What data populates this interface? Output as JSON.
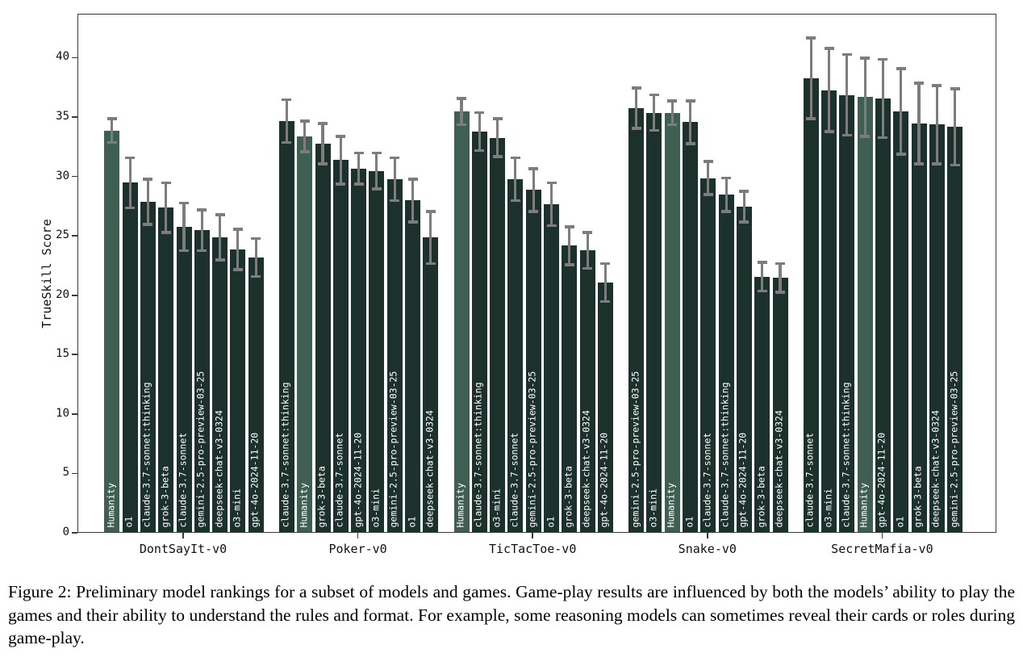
{
  "figure": {
    "caption": "Figure 2: Preliminary model rankings for a subset of models and games. Game-play results are influenced by both the models’ ability to play the games and their ability to understand the rules and format. For example, some reasoning models can sometimes reveal their cards or roles during game-play."
  },
  "chart_data": {
    "type": "bar",
    "title": "",
    "xlabel": "",
    "ylabel": "TrueSkill Score",
    "ylim": [
      0,
      43.7
    ],
    "yticks": [
      0,
      5,
      10,
      15,
      20,
      25,
      30,
      35,
      40
    ],
    "grid": false,
    "legend_position": "none",
    "bar_label_position": "inside-vertical",
    "error_bars": true,
    "highlight_category": "Humanity",
    "colors": {
      "bar": "#1c302c",
      "highlight_bar": "#3e5f52",
      "error_bar": "#7d7d7d",
      "bar_label_text": "#ffffff",
      "axis": "#3a3a3a"
    },
    "groups": [
      {
        "label": "DontSayIt-v0",
        "bars": [
          {
            "model": "Humanity",
            "value": 33.8,
            "err": 1.0,
            "highlight": true
          },
          {
            "model": "o1",
            "value": 29.4,
            "err": 2.1,
            "highlight": false
          },
          {
            "model": "claude-3.7-sonnet:thinking",
            "value": 27.8,
            "err": 1.9,
            "highlight": false
          },
          {
            "model": "grok-3-beta",
            "value": 27.3,
            "err": 2.1,
            "highlight": false
          },
          {
            "model": "claude-3.7-sonnet",
            "value": 25.7,
            "err": 2.0,
            "highlight": false
          },
          {
            "model": "gemini-2.5-pro-preview-03-25",
            "value": 25.4,
            "err": 1.7,
            "highlight": false
          },
          {
            "model": "deepseek-chat-v3-0324",
            "value": 24.8,
            "err": 1.9,
            "highlight": false
          },
          {
            "model": "o3-mini",
            "value": 23.8,
            "err": 1.7,
            "highlight": false
          },
          {
            "model": "gpt-4o-2024-11-20",
            "value": 23.1,
            "err": 1.6,
            "highlight": false
          }
        ]
      },
      {
        "label": "Poker-v0",
        "bars": [
          {
            "model": "claude-3.7-sonnet:thinking",
            "value": 34.6,
            "err": 1.8,
            "highlight": false
          },
          {
            "model": "Humanity",
            "value": 33.3,
            "err": 1.3,
            "highlight": true
          },
          {
            "model": "grok-3-beta",
            "value": 32.7,
            "err": 1.7,
            "highlight": false
          },
          {
            "model": "claude-3.7-sonnet",
            "value": 31.3,
            "err": 2.0,
            "highlight": false
          },
          {
            "model": "gpt-4o-2024-11-20",
            "value": 30.6,
            "err": 1.3,
            "highlight": false
          },
          {
            "model": "o3-mini",
            "value": 30.4,
            "err": 1.5,
            "highlight": false
          },
          {
            "model": "gemini-2.5-pro-preview-03-25",
            "value": 29.7,
            "err": 1.8,
            "highlight": false
          },
          {
            "model": "o1",
            "value": 27.9,
            "err": 1.8,
            "highlight": false
          },
          {
            "model": "deepseek-chat-v3-0324",
            "value": 24.8,
            "err": 2.2,
            "highlight": false
          }
        ]
      },
      {
        "label": "TicTacToe-v0",
        "bars": [
          {
            "model": "Humanity",
            "value": 35.4,
            "err": 1.1,
            "highlight": true
          },
          {
            "model": "claude-3.7-sonnet:thinking",
            "value": 33.7,
            "err": 1.6,
            "highlight": false
          },
          {
            "model": "o3-mini",
            "value": 33.2,
            "err": 1.6,
            "highlight": false
          },
          {
            "model": "claude-3.7-sonnet",
            "value": 29.7,
            "err": 1.8,
            "highlight": false
          },
          {
            "model": "gemini-2.5-pro-preview-03-25",
            "value": 28.8,
            "err": 1.8,
            "highlight": false
          },
          {
            "model": "o1",
            "value": 27.6,
            "err": 1.8,
            "highlight": false
          },
          {
            "model": "grok-3-beta",
            "value": 24.1,
            "err": 1.6,
            "highlight": false
          },
          {
            "model": "deepseek-chat-v3-0324",
            "value": 23.7,
            "err": 1.5,
            "highlight": false
          },
          {
            "model": "gpt-4o-2024-11-20",
            "value": 21.0,
            "err": 1.6,
            "highlight": false
          }
        ]
      },
      {
        "label": "Snake-v0",
        "bars": [
          {
            "model": "gemini-2.5-pro-preview-03-25",
            "value": 35.7,
            "err": 1.7,
            "highlight": false
          },
          {
            "model": "o3-mini",
            "value": 35.3,
            "err": 1.5,
            "highlight": false
          },
          {
            "model": "Humanity",
            "value": 35.3,
            "err": 1.0,
            "highlight": true
          },
          {
            "model": "o1",
            "value": 34.5,
            "err": 1.8,
            "highlight": false
          },
          {
            "model": "claude-3.7-sonnet",
            "value": 29.8,
            "err": 1.4,
            "highlight": false
          },
          {
            "model": "claude-3.7-sonnet:thinking",
            "value": 28.4,
            "err": 1.4,
            "highlight": false
          },
          {
            "model": "gpt-4o-2024-11-20",
            "value": 27.4,
            "err": 1.3,
            "highlight": false
          },
          {
            "model": "grok-3-beta",
            "value": 21.5,
            "err": 1.2,
            "highlight": false
          },
          {
            "model": "deepseek-chat-v3-0324",
            "value": 21.4,
            "err": 1.2,
            "highlight": false
          }
        ]
      },
      {
        "label": "SecretMafia-v0",
        "bars": [
          {
            "model": "claude-3.7-sonnet",
            "value": 38.2,
            "err": 3.4,
            "highlight": false
          },
          {
            "model": "o3-mini",
            "value": 37.2,
            "err": 3.5,
            "highlight": false
          },
          {
            "model": "claude-3.7-sonnet:thinking",
            "value": 36.8,
            "err": 3.4,
            "highlight": false
          },
          {
            "model": "Humanity",
            "value": 36.6,
            "err": 3.3,
            "highlight": true
          },
          {
            "model": "gpt-4o-2024-11-20",
            "value": 36.5,
            "err": 3.3,
            "highlight": false
          },
          {
            "model": "o1",
            "value": 35.4,
            "err": 3.6,
            "highlight": false
          },
          {
            "model": "grok-3-beta",
            "value": 34.4,
            "err": 3.4,
            "highlight": false
          },
          {
            "model": "deepseek-chat-v3-0324",
            "value": 34.3,
            "err": 3.3,
            "highlight": false
          },
          {
            "model": "gemini-2.5-pro-preview-03-25",
            "value": 34.1,
            "err": 3.2,
            "highlight": false
          }
        ]
      }
    ]
  }
}
